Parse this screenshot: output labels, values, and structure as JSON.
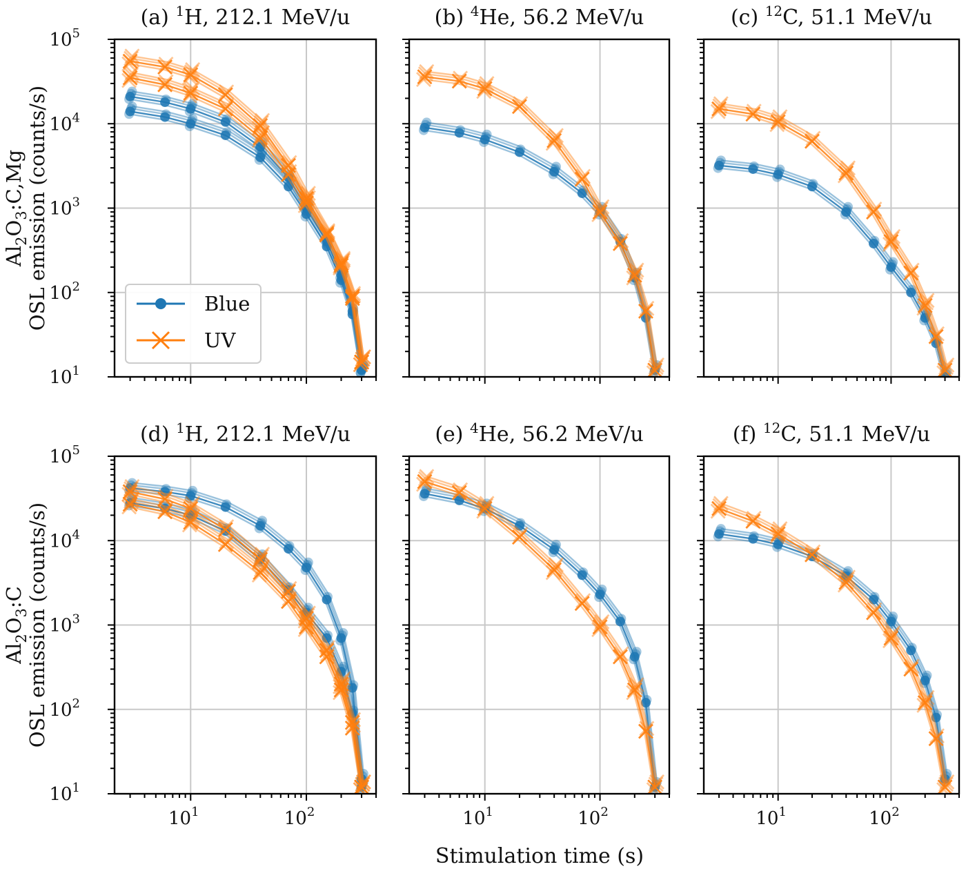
{
  "figure": {
    "xlabel": "Stimulation time (s)",
    "row_labels": [
      {
        "main": "Al2O3:C,Mg",
        "second": "OSL emission (counts/s)"
      },
      {
        "main": "Al2O3:C",
        "second": "OSL emission (counts/s)"
      }
    ],
    "legend": {
      "entries": [
        "Blue",
        "UV"
      ],
      "placement": "lower-left in panel (a)"
    },
    "colors": {
      "blue": "#1f77b4",
      "uv": "#ff7f0e"
    }
  },
  "chart_data": [
    {
      "type": "line",
      "panel": "a",
      "title_prefix": "(a)",
      "isotope_mass": "1",
      "isotope_symbol": "H",
      "title_suffix": ", 212.1 MeV/u",
      "xscale": "log",
      "yscale": "log",
      "xlim": [
        2.2,
        400
      ],
      "ylim": [
        10,
        100000
      ],
      "grid": true,
      "x_ticks": [
        "10^1",
        "10^2"
      ],
      "y_ticks": [
        "10^1",
        "10^2",
        "10^3",
        "10^4",
        "10^5"
      ],
      "series": [
        {
          "name": "Blue",
          "marker": "circle",
          "curves": [
            {
              "x": [
                3,
                6,
                10,
                20,
                40,
                70,
                100,
                150,
                200,
                250,
                300
              ],
              "y": [
                21000,
                18000,
                15000,
                10500,
                5300,
                2300,
                1000,
                400,
                160,
                60,
                12
              ]
            },
            {
              "x": [
                3,
                6,
                10,
                20,
                40,
                70,
                100,
                150,
                200,
                250,
                300
              ],
              "y": [
                14000,
                12000,
                10000,
                7300,
                4000,
                1800,
                850,
                350,
                140,
                55,
                12
              ]
            }
          ]
        },
        {
          "name": "UV",
          "marker": "x",
          "curves": [
            {
              "x": [
                3,
                6,
                10,
                20,
                40,
                70,
                100,
                150,
                200,
                250,
                300
              ],
              "y": [
                55000,
                47000,
                38000,
                22000,
                9500,
                3200,
                1300,
                500,
                220,
                90,
                15
              ]
            },
            {
              "x": [
                3,
                6,
                10,
                20,
                40,
                70,
                100,
                150,
                200,
                250,
                300
              ],
              "y": [
                35000,
                29000,
                23000,
                15000,
                6800,
                2500,
                1150,
                480,
                210,
                85,
                15
              ]
            }
          ]
        }
      ]
    },
    {
      "type": "line",
      "panel": "b",
      "title_prefix": "(b)",
      "isotope_mass": "4",
      "isotope_symbol": "He",
      "title_suffix": ", 56.2 MeV/u",
      "xscale": "log",
      "yscale": "log",
      "xlim": [
        2.2,
        400
      ],
      "ylim": [
        10,
        100000
      ],
      "grid": true,
      "x_ticks": [
        "10^1",
        "10^2"
      ],
      "y_ticks": [
        "10^1",
        "10^2",
        "10^3",
        "10^4",
        "10^5"
      ],
      "series": [
        {
          "name": "Blue",
          "marker": "circle",
          "curves": [
            {
              "x": [
                3,
                6,
                10,
                20,
                40,
                70,
                100,
                150,
                200,
                250,
                300
              ],
              "y": [
                9000,
                7800,
                6500,
                4600,
                2700,
                1500,
                900,
                400,
                150,
                50,
                12
              ]
            }
          ]
        },
        {
          "name": "UV",
          "marker": "x",
          "curves": [
            {
              "x": [
                3,
                6,
                10,
                20,
                40,
                70,
                100,
                150,
                200,
                250,
                300
              ],
              "y": [
                36000,
                32000,
                26000,
                16000,
                6300,
                2200,
                900,
                380,
                160,
                60,
                12
              ]
            }
          ]
        }
      ]
    },
    {
      "type": "line",
      "panel": "c",
      "title_prefix": "(c)",
      "isotope_mass": "12",
      "isotope_symbol": "C",
      "title_suffix": ", 51.1 MeV/u",
      "xscale": "log",
      "yscale": "log",
      "xlim": [
        2.2,
        400
      ],
      "ylim": [
        10,
        100000
      ],
      "grid": true,
      "x_ticks": [
        "10^1",
        "10^2"
      ],
      "y_ticks": [
        "10^1",
        "10^2",
        "10^3",
        "10^4",
        "10^5"
      ],
      "series": [
        {
          "name": "Blue",
          "marker": "circle",
          "curves": [
            {
              "x": [
                3,
                6,
                10,
                20,
                40,
                70,
                100,
                150,
                200,
                250,
                300
              ],
              "y": [
                3200,
                2900,
                2500,
                1800,
                900,
                380,
                200,
                100,
                50,
                25,
                10
              ]
            }
          ]
        },
        {
          "name": "UV",
          "marker": "x",
          "curves": [
            {
              "x": [
                3,
                6,
                10,
                20,
                40,
                70,
                100,
                150,
                200,
                250,
                300
              ],
              "y": [
                15000,
                13000,
                10500,
                6200,
                2600,
                900,
                400,
                170,
                70,
                30,
                12
              ]
            }
          ]
        }
      ]
    },
    {
      "type": "line",
      "panel": "d",
      "title_prefix": "(d)",
      "isotope_mass": "1",
      "isotope_symbol": "H",
      "title_suffix": ", 212.1 MeV/u",
      "xscale": "log",
      "yscale": "log",
      "xlim": [
        2.2,
        400
      ],
      "ylim": [
        10,
        100000
      ],
      "grid": true,
      "x_ticks": [
        "10^1",
        "10^2"
      ],
      "y_ticks": [
        "10^1",
        "10^2",
        "10^3",
        "10^4",
        "10^5"
      ],
      "series": [
        {
          "name": "Blue",
          "marker": "circle",
          "curves": [
            {
              "x": [
                3,
                6,
                10,
                20,
                40,
                70,
                100,
                150,
                200,
                250,
                300
              ],
              "y": [
                42000,
                38000,
                34000,
                25000,
                15000,
                8000,
                4800,
                2000,
                700,
                180,
                15
              ]
            },
            {
              "x": [
                3,
                6,
                10,
                20,
                40,
                70,
                100,
                150,
                200,
                250,
                300
              ],
              "y": [
                28000,
                24000,
                20000,
                13000,
                6000,
                2600,
                1400,
                700,
                280,
                90,
                12
              ]
            }
          ]
        },
        {
          "name": "UV",
          "marker": "x",
          "curves": [
            {
              "x": [
                3,
                6,
                10,
                20,
                40,
                70,
                100,
                150,
                200,
                250,
                300
              ],
              "y": [
                38000,
                31000,
                24000,
                13500,
                6000,
                2500,
                1200,
                500,
                200,
                70,
                12
              ]
            },
            {
              "x": [
                3,
                6,
                10,
                20,
                40,
                70,
                100,
                150,
                200,
                250,
                300
              ],
              "y": [
                27000,
                22000,
                16500,
                9000,
                4200,
                1900,
                950,
                420,
                170,
                60,
                12
              ]
            }
          ]
        }
      ]
    },
    {
      "type": "line",
      "panel": "e",
      "title_prefix": "(e)",
      "isotope_mass": "4",
      "isotope_symbol": "He",
      "title_suffix": ", 56.2 MeV/u",
      "xscale": "log",
      "yscale": "log",
      "xlim": [
        2.2,
        400
      ],
      "ylim": [
        10,
        100000
      ],
      "grid": true,
      "x_ticks": [
        "10^1",
        "10^2"
      ],
      "y_ticks": [
        "10^1",
        "10^2",
        "10^3",
        "10^4",
        "10^5"
      ],
      "series": [
        {
          "name": "Blue",
          "marker": "circle",
          "curves": [
            {
              "x": [
                3,
                6,
                10,
                20,
                40,
                70,
                100,
                150,
                200,
                250,
                300
              ],
              "y": [
                36000,
                30000,
                24000,
                15000,
                7800,
                3900,
                2300,
                1100,
                420,
                120,
                12
              ]
            }
          ]
        },
        {
          "name": "UV",
          "marker": "x",
          "curves": [
            {
              "x": [
                3,
                6,
                10,
                20,
                40,
                70,
                100,
                150,
                200,
                250,
                300
              ],
              "y": [
                50000,
                37000,
                24000,
                11000,
                4500,
                1800,
                950,
                420,
                170,
                55,
                12
              ]
            }
          ]
        }
      ]
    },
    {
      "type": "line",
      "panel": "f",
      "title_prefix": "(f)",
      "isotope_mass": "12",
      "isotope_symbol": "C",
      "title_suffix": ", 51.1 MeV/u",
      "xscale": "log",
      "yscale": "log",
      "xlim": [
        2.2,
        400
      ],
      "ylim": [
        10,
        100000
      ],
      "grid": true,
      "x_ticks": [
        "10^1",
        "10^2"
      ],
      "y_ticks": [
        "10^1",
        "10^2",
        "10^3",
        "10^4",
        "10^5"
      ],
      "series": [
        {
          "name": "Blue",
          "marker": "circle",
          "curves": [
            {
              "x": [
                3,
                6,
                10,
                20,
                40,
                70,
                100,
                150,
                200,
                250,
                300
              ],
              "y": [
                12000,
                10500,
                9000,
                6500,
                3800,
                2000,
                1100,
                500,
                220,
                80,
                15
              ]
            }
          ]
        },
        {
          "name": "UV",
          "marker": "x",
          "curves": [
            {
              "x": [
                3,
                6,
                10,
                20,
                40,
                70,
                100,
                150,
                200,
                250,
                300
              ],
              "y": [
                24000,
                17000,
                12000,
                6800,
                3200,
                1400,
                700,
                300,
                120,
                45,
                12
              ]
            }
          ]
        }
      ]
    }
  ]
}
